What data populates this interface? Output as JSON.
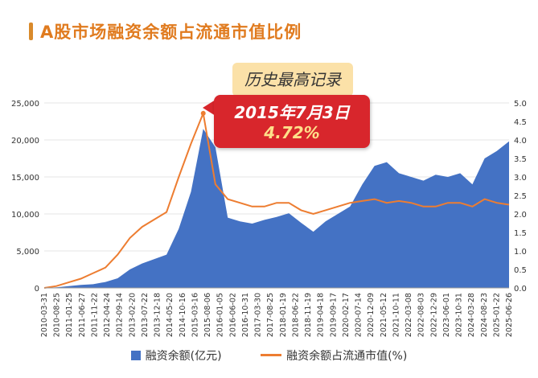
{
  "title": "A股市场融资余额占流通市值比例",
  "colors": {
    "accent": "#e07b1f",
    "area": "#4472c4",
    "line": "#ed7d31",
    "callout": "#d8262c",
    "label_bg": "#fbe1a8"
  },
  "callout": {
    "label": "历史最高记录",
    "date": "2015年7月3日",
    "value": "4.72%"
  },
  "legend": {
    "area_label": "融资余额(亿元)",
    "line_label": "融资余额占流通市值(%)"
  },
  "chart_data": {
    "type": "area",
    "title": "A股市场融资余额占流通市值比例",
    "x_tick_labels": [
      "2010-03-31",
      "2010-08-25",
      "2011-01-25",
      "2011-06-27",
      "2011-11-22",
      "2012-04-24",
      "2012-09-14",
      "2013-02-20",
      "2013-07-22",
      "2013-12-18",
      "2014-05-20",
      "2014-10-16",
      "2015-03-16",
      "2015-08-06",
      "2016-01-05",
      "2016-06-02",
      "2016-10-31",
      "2017-03-30",
      "2017-08-25",
      "2018-01-19",
      "2018-06-22",
      "2018-11-19",
      "2019-04-18",
      "2019-09-17",
      "2020-02-17",
      "2020-07-14",
      "2020-12-09",
      "2021-05-12",
      "2021-10-11",
      "2022-03-08",
      "2022-08-03",
      "2022-12-29",
      "2023-06-01",
      "2023-10-31",
      "2024-03-28",
      "2024-08-23",
      "2025-01-22",
      "2025-06-26"
    ],
    "y_left": {
      "label": "",
      "range": [
        0,
        25000
      ],
      "ticks": [
        "0",
        "5,000",
        "10,000",
        "15,000",
        "20,000",
        "25,000"
      ]
    },
    "y_right": {
      "label": "",
      "range": [
        0,
        5.0
      ],
      "ticks": [
        "0.0",
        "0.5",
        "1.0",
        "1.5",
        "2.0",
        "2.5",
        "3.0",
        "3.5",
        "4.0",
        "4.5",
        "5.0"
      ]
    },
    "series": [
      {
        "name": "融资余额(亿元)",
        "type": "area",
        "axis": "left",
        "values": [
          10,
          80,
          250,
          400,
          500,
          800,
          1300,
          2500,
          3300,
          3900,
          4500,
          8000,
          13000,
          21500,
          19000,
          9500,
          9000,
          8700,
          9200,
          9600,
          10100,
          8800,
          7600,
          9000,
          10000,
          11000,
          14000,
          16500,
          17000,
          15500,
          15000,
          14500,
          15300,
          15000,
          15500,
          14000,
          17500,
          18500,
          19800
        ]
      },
      {
        "name": "融资余额占流通市值(%)",
        "type": "line",
        "axis": "right",
        "values": [
          0.0,
          0.05,
          0.15,
          0.25,
          0.4,
          0.55,
          0.9,
          1.35,
          1.65,
          1.85,
          2.05,
          3.0,
          3.9,
          4.72,
          2.8,
          2.4,
          2.3,
          2.2,
          2.2,
          2.3,
          2.3,
          2.1,
          2.0,
          2.1,
          2.2,
          2.3,
          2.35,
          2.4,
          2.3,
          2.35,
          2.3,
          2.2,
          2.2,
          2.3,
          2.3,
          2.2,
          2.4,
          2.3,
          2.25
        ]
      }
    ],
    "annotation": {
      "text": "2015年7月3日",
      "value": "4.72%",
      "series": "融资余额占流通市值(%)"
    }
  }
}
